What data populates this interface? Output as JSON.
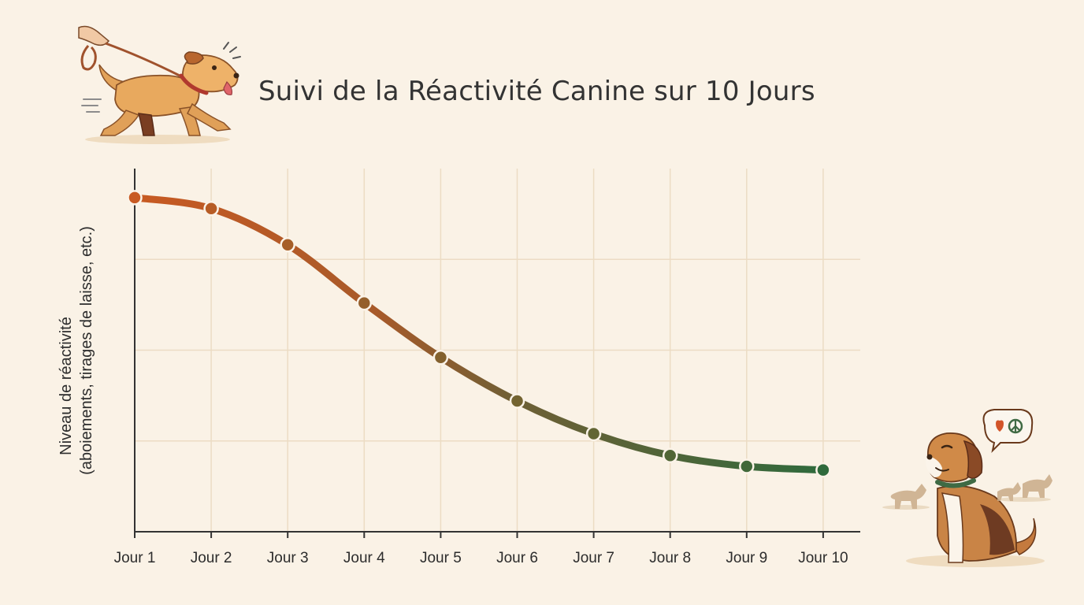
{
  "chart_data": {
    "type": "line",
    "title": "Suivi de la Réactivité Canine sur 10 Jours",
    "xlabel": "",
    "ylabel_line1": "Niveau de réactivité",
    "ylabel_line2": "(aboiements, tirages de laisse, etc.)",
    "categories": [
      "Jour 1",
      "Jour 2",
      "Jour 3",
      "Jour 4",
      "Jour 5",
      "Jour 6",
      "Jour 7",
      "Jour 8",
      "Jour 9",
      "Jour 10"
    ],
    "values": [
      9.2,
      8.9,
      7.9,
      6.3,
      4.8,
      3.6,
      2.7,
      2.1,
      1.8,
      1.7
    ],
    "ylim": [
      0,
      10
    ],
    "grid": true,
    "y_tick_labels_shown": false,
    "colors": {
      "start": "#c85a22",
      "end": "#2f6a3c",
      "grid": "#ecdcc4",
      "axis": "#333333"
    }
  },
  "illustrations": {
    "top_left": "dog-pulling-leash-icon",
    "bottom_right": "calm-beagle-icon",
    "speech_bubble": "heart-peace-icon"
  }
}
